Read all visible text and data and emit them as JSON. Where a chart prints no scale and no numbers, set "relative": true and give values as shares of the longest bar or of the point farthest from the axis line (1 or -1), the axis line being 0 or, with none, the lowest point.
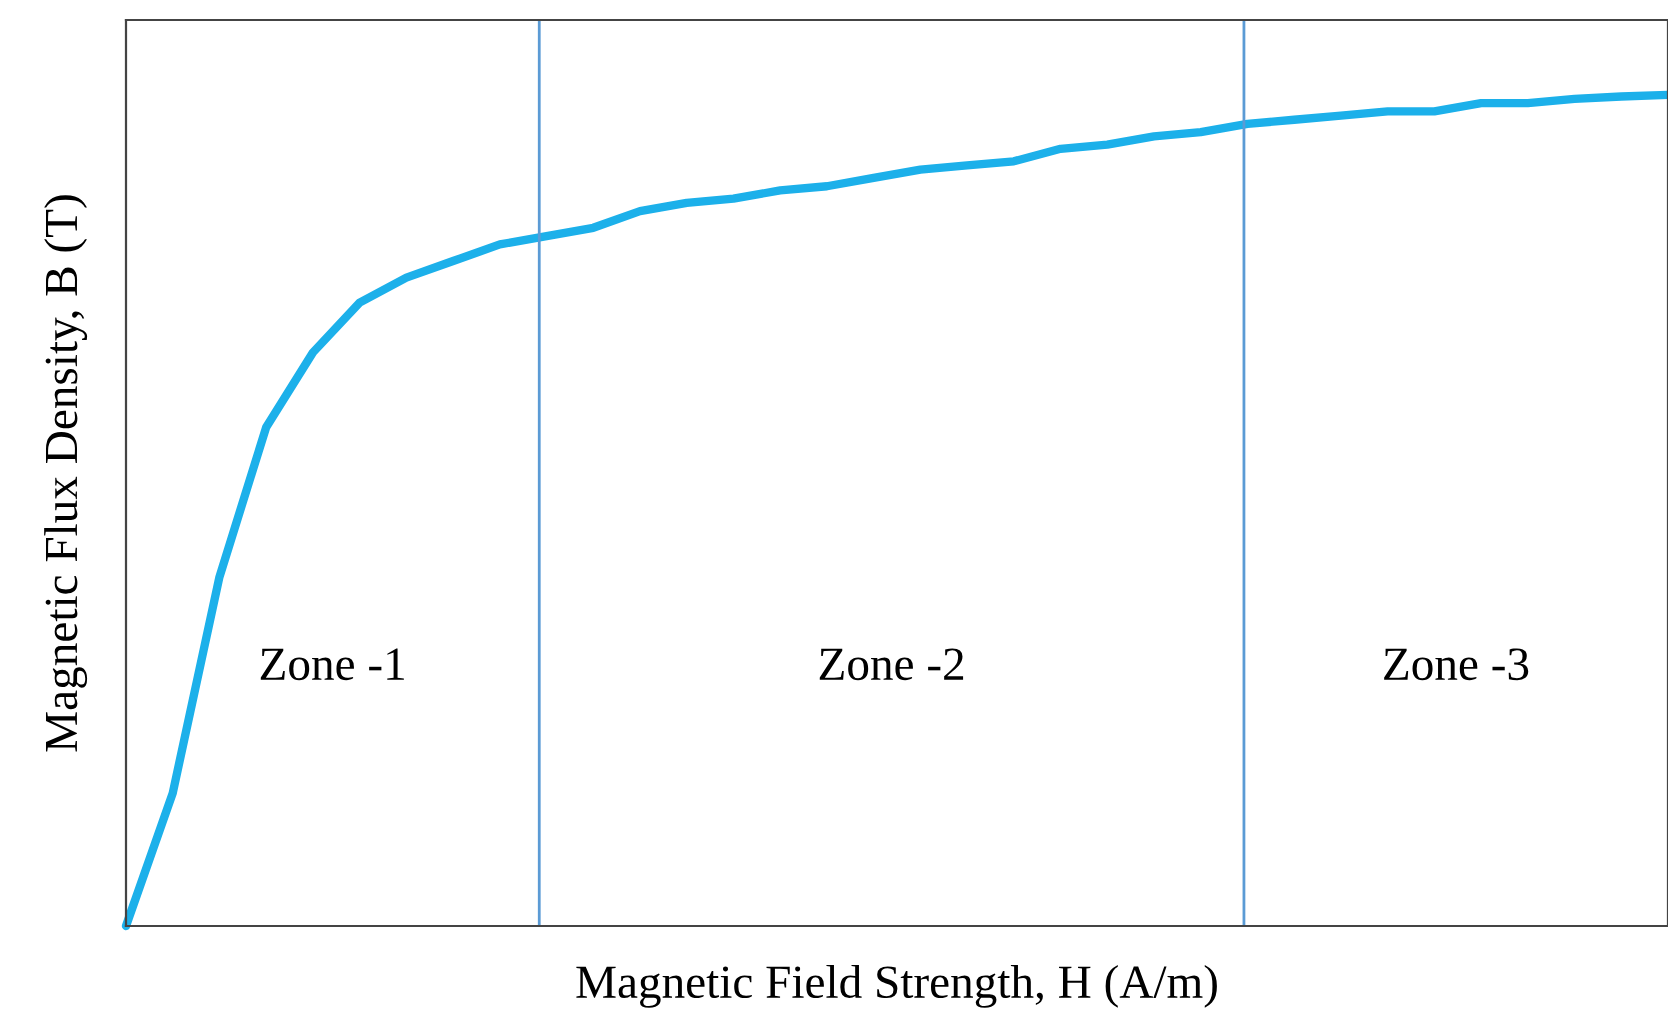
{
  "chart_data": {
    "type": "line",
    "relative": true,
    "xlabel": "Magnetic Field Strength, H (A/m)",
    "ylabel": "Magnetic Flux Density, B (T)",
    "categories": [
      null,
      null,
      null,
      null,
      null,
      null,
      null,
      null,
      null,
      null,
      null,
      null,
      null,
      null,
      null,
      null,
      null,
      null,
      null,
      null,
      null,
      null,
      null,
      null,
      null,
      null,
      null,
      null,
      null,
      null,
      null,
      null,
      null,
      null
    ],
    "series": [
      {
        "color": "#1cb0ea",
        "values": [
          0,
          0.16,
          0.42,
          0.6,
          0.69,
          0.75,
          0.78,
          0.8,
          0.82,
          0.83,
          0.84,
          0.86,
          0.87,
          0.875,
          0.885,
          0.89,
          0.9,
          0.91,
          0.915,
          0.92,
          0.935,
          0.94,
          0.95,
          0.955,
          0.965,
          0.97,
          0.975,
          0.98,
          0.98,
          0.99,
          0.99,
          0.995,
          0.998,
          1
        ]
      }
    ],
    "annotations": [
      "Zone -1",
      "Zone -2",
      "Zone -3"
    ]
  }
}
